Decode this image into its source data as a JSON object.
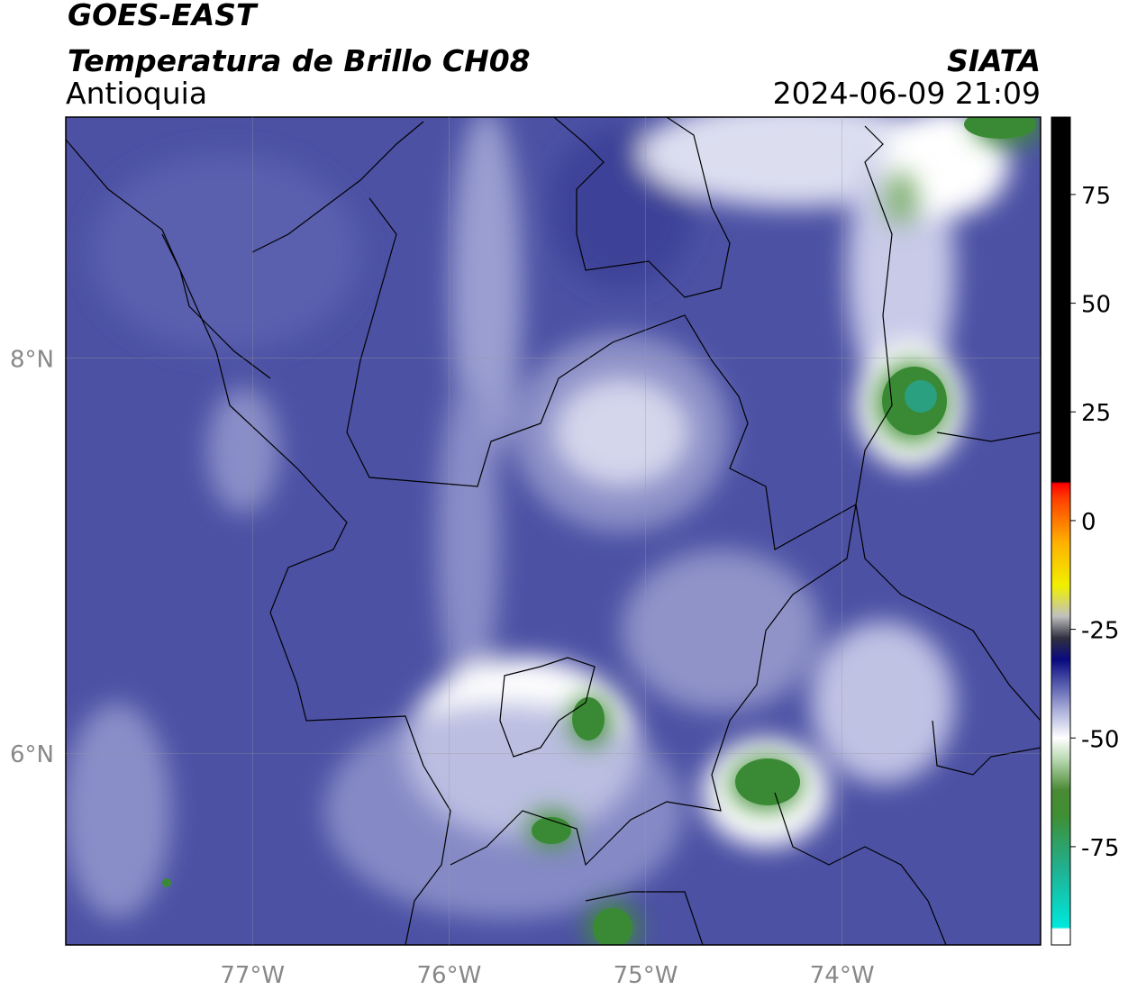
{
  "header": {
    "title": "GOES-EAST",
    "subtitle": "Temperatura de Brillo CH08",
    "region": "Antioquia",
    "agency": "SIATA",
    "datetime": "2024-06-09 21:09"
  },
  "map": {
    "lon_lim": [
      -77.95,
      -72.99
    ],
    "lat_lim": [
      5.03,
      9.22
    ],
    "lon_ticks": [
      {
        "value": -77,
        "label": "77°W"
      },
      {
        "value": -76,
        "label": "76°W"
      },
      {
        "value": -75,
        "label": "75°W"
      },
      {
        "value": -74,
        "label": "74°W"
      }
    ],
    "lat_ticks": [
      {
        "value": 8,
        "label": "8°N"
      },
      {
        "value": 6,
        "label": "6°N"
      }
    ]
  },
  "colorbar": {
    "lim": [
      -97.6,
      92.8
    ],
    "ticks": [
      75,
      50,
      25,
      0,
      -25,
      -50,
      -75
    ],
    "colors": [
      {
        "value": -97.6,
        "color": "#ffffff"
      },
      {
        "value": -94,
        "color": "#ffffff"
      },
      {
        "value": -93.5,
        "color": "#00e8dc"
      },
      {
        "value": -80,
        "color": "#20b090"
      },
      {
        "value": -68,
        "color": "#3f8f35"
      },
      {
        "value": -62,
        "color": "#4a8a35"
      },
      {
        "value": -55,
        "color": "#b8d8b0"
      },
      {
        "value": -50,
        "color": "#ffffff"
      },
      {
        "value": -44,
        "color": "#b0b4dc"
      },
      {
        "value": -38,
        "color": "#5a60b0"
      },
      {
        "value": -32,
        "color": "#0a0a80"
      },
      {
        "value": -27,
        "color": "#303040"
      },
      {
        "value": -22,
        "color": "#c0c0c0"
      },
      {
        "value": -15,
        "color": "#f0f000"
      },
      {
        "value": -5,
        "color": "#ffb000"
      },
      {
        "value": 5,
        "color": "#ff4000"
      },
      {
        "value": 8.5,
        "color": "#ff0000"
      },
      {
        "value": 9,
        "color": "#000000"
      },
      {
        "value": 92.8,
        "color": "#000000"
      }
    ]
  }
}
